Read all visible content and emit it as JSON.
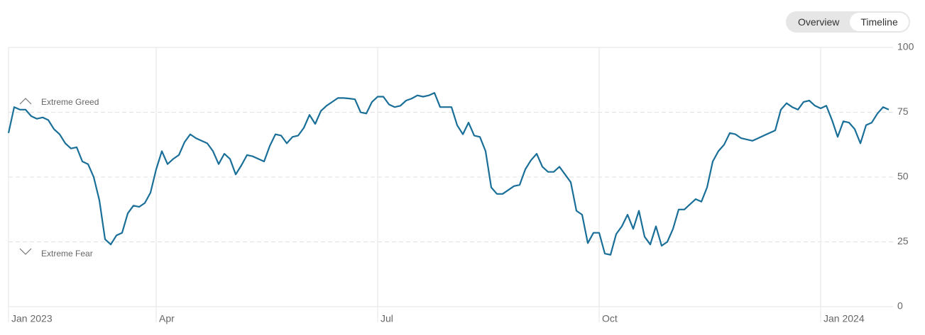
{
  "ui": {
    "tabs": [
      "Overview",
      "Timeline"
    ],
    "selected": "Timeline"
  },
  "chart_data": {
    "type": "line",
    "annotations": [
      "Extreme Greed",
      "Extreme Fear"
    ],
    "categories": [
      "Jan 2023",
      null,
      null,
      null,
      null,
      null,
      null,
      null,
      null,
      null,
      null,
      null,
      null,
      null,
      null,
      null,
      null,
      null,
      null,
      null,
      null,
      null,
      null,
      null,
      null,
      null,
      "Apr",
      null,
      null,
      null,
      null,
      null,
      null,
      null,
      null,
      null,
      null,
      null,
      null,
      null,
      null,
      null,
      null,
      null,
      null,
      null,
      null,
      null,
      null,
      null,
      null,
      null,
      null,
      null,
      null,
      null,
      null,
      null,
      null,
      null,
      null,
      null,
      null,
      null,
      null,
      "Jul",
      null,
      null,
      null,
      null,
      null,
      null,
      null,
      null,
      null,
      null,
      null,
      null,
      null,
      null,
      null,
      null,
      null,
      null,
      null,
      null,
      null,
      null,
      null,
      null,
      null,
      null,
      null,
      null,
      null,
      null,
      null,
      null,
      null,
      null,
      null,
      null,
      null,
      null,
      "Oct",
      null,
      null,
      null,
      null,
      null,
      null,
      null,
      null,
      null,
      null,
      null,
      null,
      null,
      null,
      null,
      null,
      null,
      null,
      null,
      null,
      null,
      null,
      null,
      null,
      null,
      null,
      null,
      null,
      null,
      null,
      null,
      null,
      null,
      null,
      null,
      null,
      null,
      null,
      "Jan 2024",
      null,
      null,
      null,
      null,
      null,
      null,
      null,
      null,
      null,
      null,
      null,
      null
    ],
    "values": [
      67,
      77,
      76,
      76,
      73.5,
      72.5,
      73,
      72,
      68.5,
      66.5,
      63,
      61,
      61.5,
      56,
      55,
      50,
      41,
      26,
      24,
      27.5,
      28.5,
      36,
      39,
      38.5,
      40,
      44,
      53,
      60,
      55,
      57,
      58.5,
      63.5,
      66.5,
      65,
      64,
      63,
      60,
      55,
      59,
      57,
      51,
      54.5,
      58.5,
      58,
      57,
      56,
      62,
      66.5,
      66,
      63,
      65.5,
      66,
      69,
      74,
      70.5,
      75.5,
      77.5,
      79,
      80.5,
      80.5,
      80.3,
      80,
      75,
      74.5,
      79,
      81,
      81,
      78,
      77,
      77.5,
      79.5,
      80.3,
      81.5,
      81,
      81.5,
      82.5,
      77,
      77,
      77,
      70,
      66.5,
      71,
      66,
      65.5,
      60,
      46,
      43.5,
      43.5,
      45,
      46.5,
      47,
      53,
      56.5,
      59,
      54,
      52,
      52,
      54,
      51,
      48,
      37,
      35.5,
      24.5,
      28.5,
      28.5,
      20.5,
      20,
      28,
      31,
      35.5,
      30,
      37,
      27,
      24,
      31,
      23.5,
      25,
      30,
      37.5,
      37.5,
      39.5,
      41.5,
      40.5,
      46,
      56,
      60,
      62.5,
      67,
      66.5,
      65,
      64.5,
      64,
      65,
      66,
      67,
      68,
      76,
      78.5,
      77,
      76,
      79,
      79.5,
      77.5,
      76.5,
      77.5,
      72,
      65.5,
      71.5,
      71,
      68.5,
      63,
      70,
      71,
      74.5,
      77,
      76
    ],
    "color": "#1a6f98",
    "ylim": [
      0,
      100
    ],
    "yticks": [
      0,
      25,
      50,
      75,
      100
    ],
    "grid": true
  }
}
